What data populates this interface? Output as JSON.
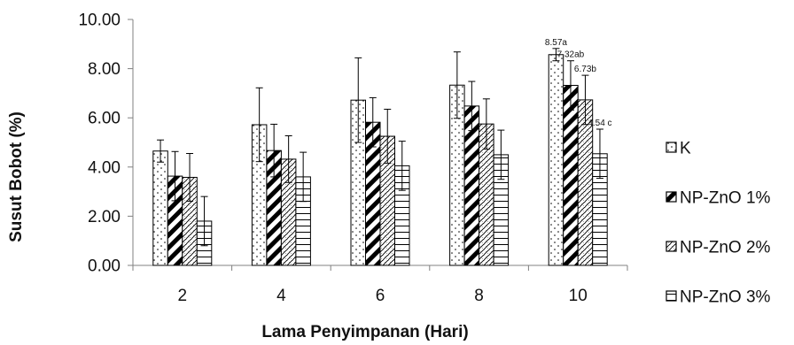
{
  "chart_data": {
    "type": "bar",
    "xlabel": "Lama Penyimpanan (Hari)",
    "ylabel": "Susut Bobot (%)",
    "ylim": [
      0,
      10
    ],
    "yticks": [
      "0.00",
      "2.00",
      "4.00",
      "6.00",
      "8.00",
      "10.00"
    ],
    "categories": [
      "2",
      "4",
      "6",
      "8",
      "10"
    ],
    "legend_position": "right",
    "series": [
      {
        "name": "K",
        "pattern": "dots",
        "values": [
          4.65,
          5.72,
          6.72,
          7.33,
          8.57
        ],
        "errors": [
          0.45,
          1.5,
          1.72,
          1.35,
          0.25
        ]
      },
      {
        "name": "NP-ZnO 1%",
        "pattern": "diagonal",
        "values": [
          3.63,
          4.67,
          5.82,
          6.48,
          7.32
        ],
        "errors": [
          1.0,
          1.07,
          1.0,
          1.0,
          1.0
        ]
      },
      {
        "name": "NP-ZnO 2%",
        "pattern": "checker",
        "values": [
          3.58,
          4.32,
          5.25,
          5.75,
          6.73
        ],
        "errors": [
          0.97,
          0.95,
          1.1,
          1.02,
          1.0
        ]
      },
      {
        "name": "NP-ZnO 3%",
        "pattern": "horizontal",
        "values": [
          1.8,
          3.6,
          4.05,
          4.5,
          4.54
        ],
        "errors": [
          1.0,
          1.0,
          1.0,
          1.0,
          1.0
        ]
      }
    ],
    "data_labels": {
      "category": "10",
      "labels": [
        "8.57a",
        "7.32ab",
        "6.73b",
        "4.54 c"
      ]
    }
  }
}
